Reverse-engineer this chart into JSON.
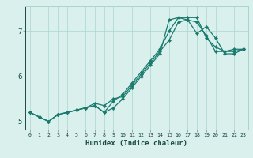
{
  "title": "",
  "xlabel": "Humidex (Indice chaleur)",
  "ylabel": "",
  "background_color": "#d9f0ed",
  "line_color": "#1a7a6e",
  "grid_color": "#aad4ce",
  "xlim": [
    -0.5,
    23.5
  ],
  "ylim": [
    4.82,
    7.55
  ],
  "xticks": [
    0,
    1,
    2,
    3,
    4,
    5,
    6,
    7,
    8,
    9,
    10,
    11,
    12,
    13,
    14,
    15,
    16,
    17,
    18,
    19,
    20,
    21,
    22,
    23
  ],
  "yticks": [
    5,
    6,
    7
  ],
  "series": [
    [
      5.2,
      5.1,
      5.0,
      5.15,
      5.2,
      5.25,
      5.3,
      5.35,
      5.2,
      5.3,
      5.5,
      5.75,
      6.0,
      6.25,
      6.5,
      7.25,
      7.3,
      7.25,
      7.2,
      6.9,
      6.55,
      6.55,
      6.6,
      6.6
    ],
    [
      5.2,
      5.1,
      5.0,
      5.15,
      5.2,
      5.25,
      5.3,
      5.35,
      5.2,
      5.45,
      5.6,
      5.85,
      6.1,
      6.35,
      6.6,
      7.0,
      7.3,
      7.3,
      7.3,
      6.85,
      6.65,
      6.55,
      6.55,
      6.6
    ],
    [
      5.2,
      5.1,
      5.0,
      5.15,
      5.2,
      5.25,
      5.3,
      5.4,
      5.35,
      5.5,
      5.55,
      5.8,
      6.05,
      6.3,
      6.55,
      6.8,
      7.2,
      7.25,
      6.95,
      7.1,
      6.85,
      6.5,
      6.5,
      6.6
    ]
  ]
}
